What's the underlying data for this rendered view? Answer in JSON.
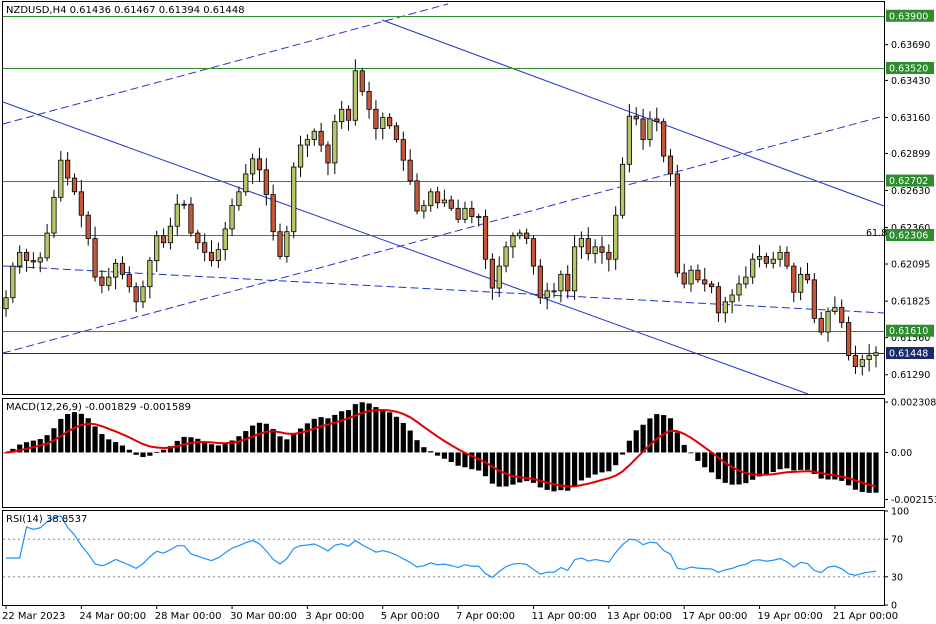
{
  "chart_data": {
    "type": "candlestick",
    "symbol_header": {
      "text": "NZDUSD,H4  0.61436 0.61467 0.61394 0.61448"
    },
    "price_axis": {
      "ylim": [
        0.6115,
        0.64
      ],
      "ticks": [
        "0.63690",
        "0.63430",
        "0.63160",
        "0.62899",
        "0.62630",
        "0.62360",
        "0.62095",
        "0.61825",
        "0.61560",
        "0.61290"
      ],
      "tick_values": [
        0.6369,
        0.6343,
        0.6316,
        0.62899,
        0.6263,
        0.6236,
        0.62095,
        0.61825,
        0.6156,
        0.6129
      ]
    },
    "horizontal_levels": [
      {
        "label": "0.63900",
        "value": 0.639,
        "color": "#2e8b2e"
      },
      {
        "label": "0.63520",
        "value": 0.6352,
        "color": "#2e8b2e"
      },
      {
        "label": "0.62702",
        "value": 0.62702,
        "color": "#2e8b2e"
      },
      {
        "label": "0.62306",
        "value": 0.62306,
        "color": "#2e8b2e"
      },
      {
        "label": "0.61610",
        "value": 0.6161,
        "color": "#2e8b2e"
      },
      {
        "label": "0.61448",
        "value": 0.61448,
        "color": "#1a2a6c"
      }
    ],
    "fib_label": "61.8",
    "dates": [
      "22 Mar 2023",
      "24 Mar 00:00",
      "28 Mar 00:00",
      "30 Mar 00:00",
      "3 Apr 00:00",
      "5 Apr 00:00",
      "7 Apr 00:00",
      "11 Apr 00:00",
      "13 Apr 00:00",
      "17 Apr 00:00",
      "19 Apr 00:00",
      "21 Apr 00:00"
    ],
    "closes": [
      0.6185,
      0.6208,
      0.6218,
      0.6212,
      0.6211,
      0.6214,
      0.6232,
      0.6258,
      0.6285,
      0.6272,
      0.6262,
      0.6245,
      0.6228,
      0.62,
      0.6194,
      0.62,
      0.621,
      0.6202,
      0.6193,
      0.6182,
      0.6193,
      0.6212,
      0.623,
      0.6225,
      0.6237,
      0.6253,
      0.6253,
      0.6232,
      0.6225,
      0.6218,
      0.6212,
      0.622,
      0.6235,
      0.6252,
      0.6262,
      0.6275,
      0.6286,
      0.6278,
      0.626,
      0.6233,
      0.6215,
      0.6233,
      0.628,
      0.6296,
      0.63,
      0.6306,
      0.6296,
      0.6283,
      0.6313,
      0.6322,
      0.6314,
      0.635,
      0.6335,
      0.6322,
      0.6308,
      0.6316,
      0.631,
      0.63,
      0.6285,
      0.627,
      0.6248,
      0.6252,
      0.6262,
      0.6254,
      0.6256,
      0.625,
      0.6242,
      0.625,
      0.6244,
      0.6244,
      0.6213,
      0.6192,
      0.6208,
      0.6222,
      0.623,
      0.6232,
      0.6228,
      0.6208,
      0.6185,
      0.619,
      0.619,
      0.6202,
      0.619,
      0.6222,
      0.6228,
      0.6217,
      0.6222,
      0.6218,
      0.6213,
      0.6245,
      0.6282,
      0.6317,
      0.6315,
      0.63,
      0.6315,
      0.6313,
      0.6288,
      0.6275,
      0.6203,
      0.6195,
      0.6205,
      0.6198,
      0.6195,
      0.6193,
      0.6174,
      0.6182,
      0.6187,
      0.6195,
      0.62,
      0.6213,
      0.6215,
      0.621,
      0.6213,
      0.6218,
      0.6208,
      0.6189,
      0.6202,
      0.6198,
      0.617,
      0.616,
      0.6175,
      0.6178,
      0.6167,
      0.6143,
      0.6135,
      0.614,
      0.6143,
      0.6145
    ],
    "macd": {
      "label": "MACD(12,26,9) -0.001829 -0.001589",
      "ylim": [
        -0.0025,
        0.00245
      ],
      "ticks": [
        "0.002308",
        "0.00",
        "-0.002153"
      ],
      "tick_values": [
        0.002308,
        0.0,
        -0.002153
      ]
    },
    "rsi": {
      "label": "RSI(14) 38.8537",
      "ylim": [
        0,
        100
      ],
      "ticks": [
        "100",
        "70",
        "30",
        "0"
      ],
      "tick_values": [
        100,
        70,
        30,
        0
      ],
      "dotted_levels": [
        70,
        30
      ]
    }
  }
}
